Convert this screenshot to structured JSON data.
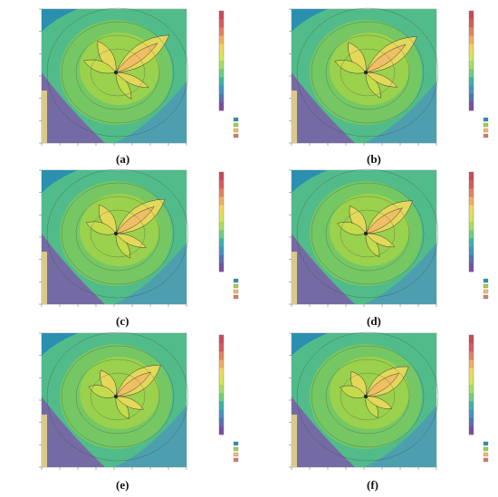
{
  "figure": {
    "captions": [
      "(a)",
      "(b)",
      "(c)",
      "(d)",
      "(e)",
      "(f)"
    ],
    "colorbar_colors": [
      "#7d4ca0",
      "#5a6fb4",
      "#3f95c4",
      "#3cb2a8",
      "#6fcf7d",
      "#a8dc62",
      "#d8e552",
      "#f2d55a",
      "#f0ae5f",
      "#e58060",
      "#d85a5a",
      "#c94a58"
    ],
    "contour_fill_colors": [
      "#2b8fb0",
      "#3aa8a4",
      "#52bb8a",
      "#79c95f",
      "#9fd24a",
      "#c6dd4c",
      "#e8d95b",
      "#f1bd65",
      "#e69a6a",
      "#d37b6a"
    ],
    "map_background_accent": [
      "#d9c98a",
      "#7b5da8",
      "#4d9bb3"
    ]
  }
}
